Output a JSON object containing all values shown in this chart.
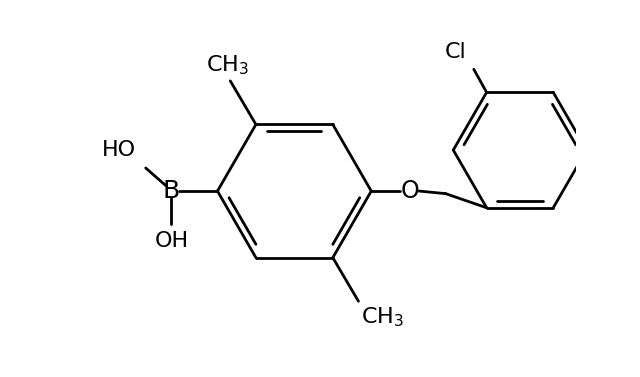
{
  "bg_color": "#ffffff",
  "line_color": "#000000",
  "line_width": 2.0,
  "font_size": 16,
  "figsize": [
    6.4,
    3.77
  ],
  "dpi": 100,
  "xlim": [
    -0.8,
    9.2
  ],
  "ylim": [
    1.2,
    8.5
  ]
}
